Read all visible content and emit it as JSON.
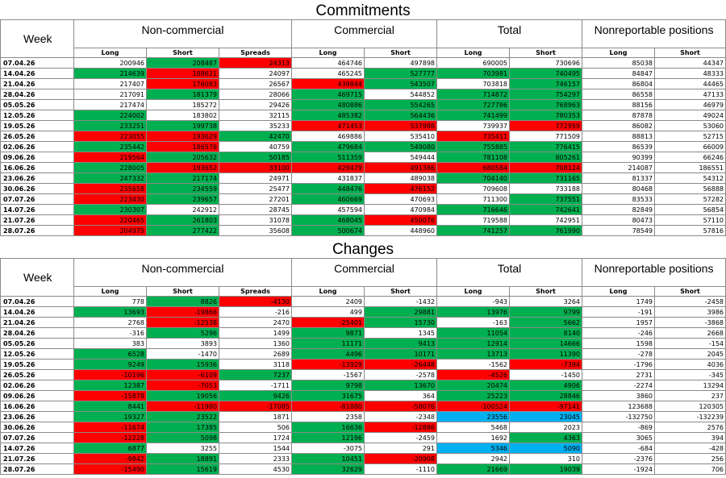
{
  "commitments_title": "Commitments",
  "changes_title": "Changes",
  "headers": {
    "week": "Week",
    "groups": [
      "Non-commercial",
      "Commercial",
      "Total",
      "Nonreportable positions"
    ],
    "sub": [
      "Long",
      "Short",
      "Spreads",
      "Long",
      "Short",
      "Long",
      "Short",
      "Long",
      "Short"
    ]
  },
  "colors": {
    "green": "#00b050",
    "red": "#ff0000",
    "blue": "#00b0f0"
  },
  "commitments": [
    {
      "week": "07.04.26",
      "v": [
        "200946",
        "208487",
        "24313",
        "464746",
        "497898",
        "690005",
        "730696",
        "85038",
        "44347"
      ],
      "c": [
        "",
        "g",
        "r",
        "",
        "",
        "",
        "",
        "",
        ""
      ]
    },
    {
      "week": "14.04.26",
      "v": [
        "214639",
        "188621",
        "24097",
        "465245",
        "527777",
        "703981",
        "740495",
        "84847",
        "48333"
      ],
      "c": [
        "g",
        "r",
        "",
        "",
        "g",
        "g",
        "g",
        "",
        ""
      ]
    },
    {
      "week": "21.04.26",
      "v": [
        "217407",
        "176083",
        "26567",
        "439844",
        "543507",
        "703818",
        "746157",
        "86804",
        "44465"
      ],
      "c": [
        "",
        "r",
        "",
        "r",
        "g",
        "",
        "g",
        "",
        ""
      ]
    },
    {
      "week": "28.04.26",
      "v": [
        "217091",
        "181379",
        "28066",
        "469715",
        "544852",
        "714872",
        "754297",
        "86558",
        "47133"
      ],
      "c": [
        "",
        "g",
        "",
        "g",
        "",
        "g",
        "g",
        "",
        ""
      ]
    },
    {
      "week": "05.05.26",
      "v": [
        "217474",
        "185272",
        "29426",
        "480886",
        "554265",
        "727786",
        "768963",
        "88156",
        "46979"
      ],
      "c": [
        "",
        "",
        "",
        "g",
        "g",
        "g",
        "g",
        "",
        ""
      ]
    },
    {
      "week": "12.05.26",
      "v": [
        "224002",
        "183802",
        "32115",
        "485382",
        "564436",
        "741499",
        "780353",
        "87878",
        "49024"
      ],
      "c": [
        "g",
        "",
        "",
        "g",
        "g",
        "g",
        "g",
        "",
        ""
      ]
    },
    {
      "week": "19.05.26",
      "v": [
        "233251",
        "199738",
        "35233",
        "471453",
        "537988",
        "739937",
        "772959",
        "86082",
        "53060"
      ],
      "c": [
        "g",
        "g",
        "",
        "r",
        "r",
        "",
        "r",
        "",
        ""
      ]
    },
    {
      "week": "26.05.26",
      "v": [
        "223055",
        "193629",
        "42470",
        "469886",
        "535410",
        "735411",
        "771509",
        "88813",
        "52715"
      ],
      "c": [
        "r",
        "r",
        "g",
        "",
        "",
        "r",
        "",
        "",
        ""
      ]
    },
    {
      "week": "02.06.26",
      "v": [
        "235442",
        "186576",
        "40759",
        "479684",
        "549080",
        "755885",
        "776415",
        "86539",
        "66009"
      ],
      "c": [
        "g",
        "r",
        "",
        "g",
        "g",
        "g",
        "g",
        "",
        ""
      ]
    },
    {
      "week": "09.06.26",
      "v": [
        "219564",
        "205632",
        "50185",
        "511359",
        "549444",
        "781108",
        "805261",
        "90399",
        "66246"
      ],
      "c": [
        "r",
        "g",
        "g",
        "g",
        "",
        "g",
        "g",
        "",
        ""
      ]
    },
    {
      "week": "16.06.26",
      "v": [
        "228005",
        "193652",
        "33100",
        "429479",
        "491386",
        "680584",
        "708124",
        "214087",
        "186551"
      ],
      "c": [
        "g",
        "r",
        "r",
        "r",
        "r",
        "r",
        "r",
        "",
        ""
      ]
    },
    {
      "week": "23.06.26",
      "v": [
        "247332",
        "217174",
        "24971",
        "431837",
        "489038",
        "704140",
        "731165",
        "81337",
        "54312"
      ],
      "c": [
        "g",
        "g",
        "",
        "",
        "",
        "g",
        "g",
        "",
        ""
      ]
    },
    {
      "week": "30.06.26",
      "v": [
        "235658",
        "234559",
        "25477",
        "448476",
        "476152",
        "709608",
        "733188",
        "80468",
        "56888"
      ],
      "c": [
        "r",
        "g",
        "",
        "g",
        "r",
        "",
        "",
        "",
        ""
      ]
    },
    {
      "week": "07.07.26",
      "v": [
        "223430",
        "239657",
        "27201",
        "460669",
        "470693",
        "711300",
        "737551",
        "83533",
        "57282"
      ],
      "c": [
        "r",
        "g",
        "",
        "g",
        "",
        "",
        "g",
        "",
        ""
      ]
    },
    {
      "week": "14.07.26",
      "v": [
        "230307",
        "242912",
        "28745",
        "457594",
        "470984",
        "716646",
        "742641",
        "82849",
        "56854"
      ],
      "c": [
        "g",
        "",
        "",
        "",
        "",
        "g",
        "g",
        "",
        ""
      ]
    },
    {
      "week": "21.07.26",
      "v": [
        "220465",
        "261803",
        "31078",
        "468045",
        "450076",
        "719588",
        "742951",
        "80473",
        "57110"
      ],
      "c": [
        "r",
        "g",
        "",
        "g",
        "r",
        "",
        "",
        "",
        ""
      ]
    },
    {
      "week": "28.07.26",
      "v": [
        "204975",
        "277422",
        "35608",
        "500674",
        "448960",
        "741257",
        "761990",
        "78549",
        "57816"
      ],
      "c": [
        "r",
        "g",
        "",
        "g",
        "",
        "g",
        "g",
        "",
        ""
      ]
    }
  ],
  "changes": [
    {
      "week": "07.04.26",
      "v": [
        "778",
        "8826",
        "-4130",
        "2409",
        "-1432",
        "-943",
        "3264",
        "1749",
        "-2458"
      ],
      "c": [
        "",
        "g",
        "r",
        "",
        "",
        "",
        "",
        "",
        ""
      ]
    },
    {
      "week": "14.04.26",
      "v": [
        "13693",
        "-19866",
        "-216",
        "499",
        "29881",
        "13976",
        "9799",
        "-191",
        "3986"
      ],
      "c": [
        "g",
        "r",
        "",
        "",
        "g",
        "g",
        "g",
        "",
        ""
      ]
    },
    {
      "week": "21.04.26",
      "v": [
        "2768",
        "-12538",
        "2470",
        "-25401",
        "15730",
        "-163",
        "5662",
        "1957",
        "-3868"
      ],
      "c": [
        "",
        "r",
        "",
        "r",
        "g",
        "",
        "g",
        "",
        ""
      ]
    },
    {
      "week": "28.04.26",
      "v": [
        "-316",
        "5296",
        "1499",
        "9871",
        "1345",
        "11054",
        "8140",
        "-246",
        "2668"
      ],
      "c": [
        "",
        "g",
        "",
        "g",
        "",
        "g",
        "g",
        "",
        ""
      ]
    },
    {
      "week": "05.05.26",
      "v": [
        "383",
        "3893",
        "1360",
        "11171",
        "9413",
        "12914",
        "14666",
        "1598",
        "-154"
      ],
      "c": [
        "",
        "",
        "",
        "g",
        "g",
        "g",
        "g",
        "",
        ""
      ]
    },
    {
      "week": "12.05.26",
      "v": [
        "6528",
        "-1470",
        "2689",
        "4496",
        "10171",
        "13713",
        "11390",
        "-278",
        "2045"
      ],
      "c": [
        "g",
        "",
        "",
        "g",
        "g",
        "g",
        "g",
        "",
        ""
      ]
    },
    {
      "week": "19.05.26",
      "v": [
        "9249",
        "15936",
        "3118",
        "-13929",
        "-26448",
        "-1562",
        "-7394",
        "-1796",
        "4036"
      ],
      "c": [
        "g",
        "g",
        "",
        "r",
        "r",
        "",
        "r",
        "",
        ""
      ]
    },
    {
      "week": "26.05.26",
      "v": [
        "-10196",
        "-6109",
        "7237",
        "-1567",
        "-2578",
        "-4526",
        "-1450",
        "2731",
        "-345"
      ],
      "c": [
        "r",
        "r",
        "g",
        "",
        "",
        "r",
        "",
        "",
        ""
      ]
    },
    {
      "week": "02.06.26",
      "v": [
        "12387",
        "-7053",
        "-1711",
        "9798",
        "13670",
        "20474",
        "4906",
        "-2274",
        "13294"
      ],
      "c": [
        "g",
        "r",
        "",
        "g",
        "g",
        "g",
        "g",
        "",
        ""
      ]
    },
    {
      "week": "09.06.26",
      "v": [
        "-15878",
        "19056",
        "9426",
        "31675",
        "364",
        "25223",
        "28846",
        "3860",
        "237"
      ],
      "c": [
        "r",
        "g",
        "g",
        "g",
        "",
        "g",
        "g",
        "",
        ""
      ]
    },
    {
      "week": "16.06.26",
      "v": [
        "8441",
        "-11980",
        "-17085",
        "-81880",
        "-58076",
        "-100524",
        "-97141",
        "123688",
        "120305"
      ],
      "c": [
        "g",
        "r",
        "r",
        "r",
        "r",
        "r",
        "r",
        "",
        ""
      ]
    },
    {
      "week": "23.06.26",
      "v": [
        "19327",
        "23522",
        "1871",
        "2358",
        "-2348",
        "23556",
        "23045",
        "-132750",
        "-132239"
      ],
      "c": [
        "g",
        "g",
        "",
        "",
        "",
        "b",
        "b",
        "",
        ""
      ]
    },
    {
      "week": "30.06.26",
      "v": [
        "-11674",
        "17385",
        "506",
        "16636",
        "-12886",
        "5468",
        "2023",
        "-869",
        "2576"
      ],
      "c": [
        "r",
        "g",
        "",
        "g",
        "r",
        "",
        "",
        "",
        ""
      ]
    },
    {
      "week": "07.07.26",
      "v": [
        "-12228",
        "5098",
        "1724",
        "12196",
        "-2459",
        "1692",
        "4363",
        "3065",
        "394"
      ],
      "c": [
        "r",
        "g",
        "",
        "g",
        "",
        "",
        "g",
        "",
        ""
      ]
    },
    {
      "week": "14.07.26",
      "v": [
        "6877",
        "3255",
        "1544",
        "-3075",
        "291",
        "5346",
        "5090",
        "-684",
        "-428"
      ],
      "c": [
        "g",
        "",
        "",
        "",
        "",
        "b",
        "b",
        "",
        ""
      ]
    },
    {
      "week": "21.07.26",
      "v": [
        "-9842",
        "18891",
        "2333",
        "10451",
        "-20908",
        "2942",
        "310",
        "-2376",
        "256"
      ],
      "c": [
        "r",
        "g",
        "",
        "g",
        "r",
        "",
        "",
        "",
        ""
      ]
    },
    {
      "week": "28.07.26",
      "v": [
        "-15490",
        "15619",
        "4530",
        "32629",
        "-1110",
        "21669",
        "19039",
        "-1924",
        "706"
      ],
      "c": [
        "r",
        "g",
        "",
        "g",
        "",
        "g",
        "g",
        "",
        ""
      ]
    }
  ]
}
